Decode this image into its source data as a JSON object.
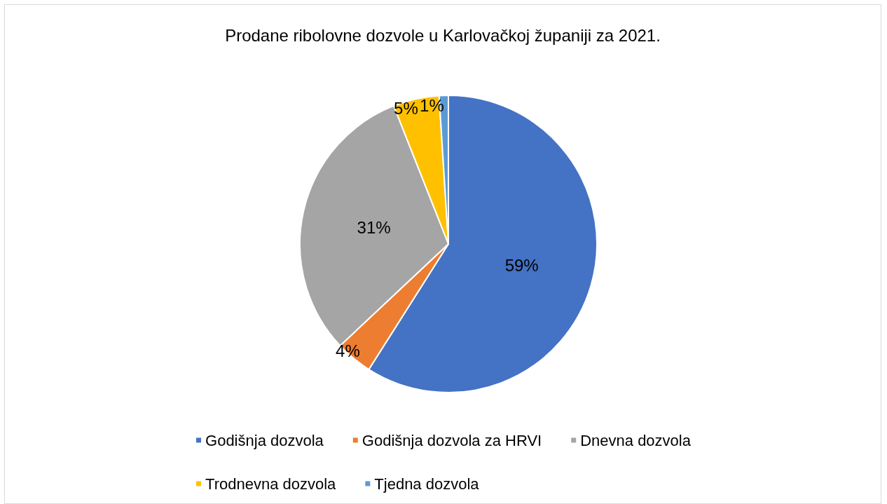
{
  "chart_data": {
    "type": "pie",
    "title": "Prodane ribolovne dozvole u Karlovačkoj županiji za 2021.",
    "categories": [
      "Godišnja dozvola",
      "Godišnja dozvola za HRVI",
      "Dnevna dozvola",
      "Trodnevna dozvola",
      "Tjedna dozvola"
    ],
    "values": [
      59,
      4,
      31,
      5,
      1
    ],
    "colors": [
      "#4472c4",
      "#ed7d31",
      "#a5a5a5",
      "#ffc000",
      "#5b9bd5"
    ],
    "value_labels": [
      "59%",
      "4%",
      "31%",
      "5%",
      "1%"
    ],
    "legend": "bottom"
  }
}
